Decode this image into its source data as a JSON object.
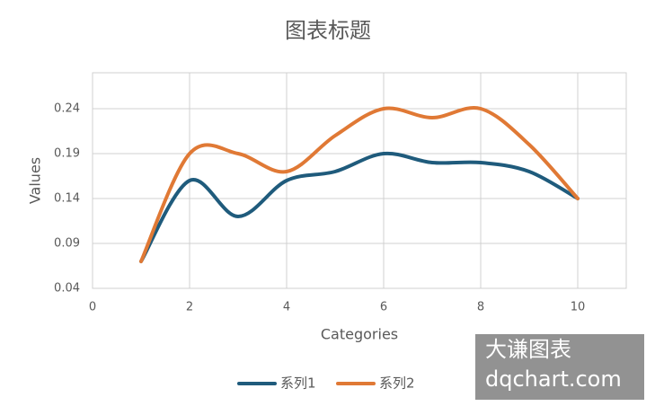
{
  "chart_data": {
    "type": "line",
    "title": "图表标题",
    "x_label": "Categories",
    "y_label": "Values",
    "x": [
      1,
      2,
      3,
      4,
      5,
      6,
      7,
      8,
      9,
      10
    ],
    "series": [
      {
        "name": "系列1",
        "color": "#1f5b7c",
        "values": [
          0.07,
          0.16,
          0.12,
          0.16,
          0.17,
          0.19,
          0.18,
          0.18,
          0.17,
          0.14
        ]
      },
      {
        "name": "系列2",
        "color": "#e07935",
        "values": [
          0.07,
          0.19,
          0.19,
          0.17,
          0.21,
          0.24,
          0.23,
          0.24,
          0.2,
          0.14
        ]
      }
    ],
    "smooth": true,
    "xlim": [
      0,
      11
    ],
    "xticks": [
      0,
      2,
      4,
      6,
      8,
      10
    ],
    "ylim": [
      0.04,
      0.28
    ],
    "yticks": [
      0.04,
      0.09,
      0.14,
      0.19,
      0.24
    ],
    "grid": true,
    "legend": "bottom"
  },
  "watermark": {
    "line1": "大谦图表",
    "line2": "dqchart.com"
  }
}
